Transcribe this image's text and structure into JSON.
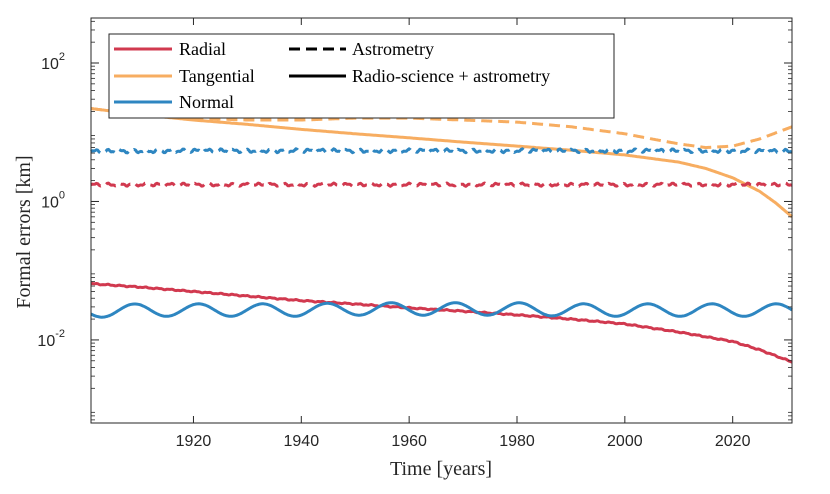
{
  "chart_data": {
    "type": "line",
    "xlabel": "Time [years]",
    "ylabel": "Formal errors [km]",
    "xlim": [
      1901,
      2031
    ],
    "ylim_log10": [
      -3.2,
      2.65
    ],
    "y_scale": "log",
    "x_ticks": [
      1920,
      1940,
      1960,
      1980,
      2000,
      2020
    ],
    "y_ticks": [
      {
        "base": "10",
        "exp": "2",
        "value": 100
      },
      {
        "base": "10",
        "exp": "0",
        "value": 1
      },
      {
        "base": "10",
        "exp": "-2",
        "value": 0.01
      }
    ],
    "legend_position": "top-left",
    "legend": [
      {
        "label": "Radial",
        "kind": "color",
        "color": "#d1394f"
      },
      {
        "label": "Tangential",
        "kind": "color",
        "color": "#f7ad61"
      },
      {
        "label": "Normal",
        "kind": "color",
        "color": "#2e86c1"
      },
      {
        "label": "Astrometry",
        "kind": "style",
        "dash": true
      },
      {
        "label": "Radio-science + astrometry",
        "kind": "style",
        "dash": false
      }
    ],
    "series": [
      {
        "name": "Radial - Radio-science + astrometry",
        "color": "#d1394f",
        "dash": false,
        "oscillation": 0.006,
        "x": [
          1901,
          1910,
          1920,
          1930,
          1940,
          1950,
          1960,
          1970,
          1980,
          1990,
          2000,
          2010,
          2020,
          2025,
          2031
        ],
        "y": [
          0.065,
          0.058,
          0.05,
          0.043,
          0.037,
          0.033,
          0.029,
          0.026,
          0.023,
          0.02,
          0.017,
          0.013,
          0.0095,
          0.0072,
          0.0048
        ]
      },
      {
        "name": "Tangential - Radio-science + astrometry",
        "color": "#f7ad61",
        "dash": false,
        "oscillation": 0,
        "x": [
          1901,
          1910,
          1920,
          1930,
          1940,
          1950,
          1960,
          1970,
          1980,
          1990,
          2000,
          2010,
          2015,
          2020,
          2025,
          2028,
          2031
        ],
        "y": [
          22,
          18,
          15,
          13,
          11,
          9.5,
          8.3,
          7.2,
          6.3,
          5.5,
          4.7,
          3.7,
          3.0,
          2.2,
          1.4,
          0.95,
          0.6
        ]
      },
      {
        "name": "Normal - Radio-science + astrometry",
        "color": "#2e86c1",
        "dash": false,
        "oscillation": 0,
        "x": [
          1901,
          1910,
          1920,
          1930,
          1940,
          1950,
          1960,
          1970,
          1980,
          1990,
          2000,
          2010,
          2020,
          2031
        ],
        "y": [
          0.026,
          0.027,
          0.027,
          0.027,
          0.027,
          0.028,
          0.028,
          0.028,
          0.028,
          0.027,
          0.027,
          0.027,
          0.027,
          0.027
        ],
        "wave": {
          "amplitude_log10": 0.09,
          "period_years": 11.9
        }
      },
      {
        "name": "Radial - Astrometry",
        "color": "#d1394f",
        "dash": true,
        "oscillation": 0.015,
        "x": [
          1901,
          1920,
          1940,
          1960,
          1980,
          2000,
          2020,
          2031
        ],
        "y": [
          1.75,
          1.75,
          1.75,
          1.75,
          1.75,
          1.75,
          1.75,
          1.75
        ]
      },
      {
        "name": "Tangential - Astrometry",
        "color": "#f7ad61",
        "dash": true,
        "oscillation": 0,
        "x": [
          1901,
          1910,
          1920,
          1930,
          1940,
          1950,
          1960,
          1970,
          1980,
          1990,
          2000,
          2005,
          2010,
          2015,
          2020,
          2025,
          2031
        ],
        "y": [
          22,
          18,
          16,
          15,
          15,
          16,
          16,
          15,
          14,
          12,
          9.5,
          8.0,
          6.8,
          6.0,
          6.3,
          8.0,
          12
        ]
      },
      {
        "name": "Normal - Astrometry",
        "color": "#2e86c1",
        "dash": true,
        "oscillation": 0.018,
        "x": [
          1901,
          1920,
          1940,
          1960,
          1980,
          2000,
          2020,
          2031
        ],
        "y": [
          5.3,
          5.4,
          5.4,
          5.4,
          5.4,
          5.4,
          5.4,
          5.3
        ]
      }
    ]
  }
}
